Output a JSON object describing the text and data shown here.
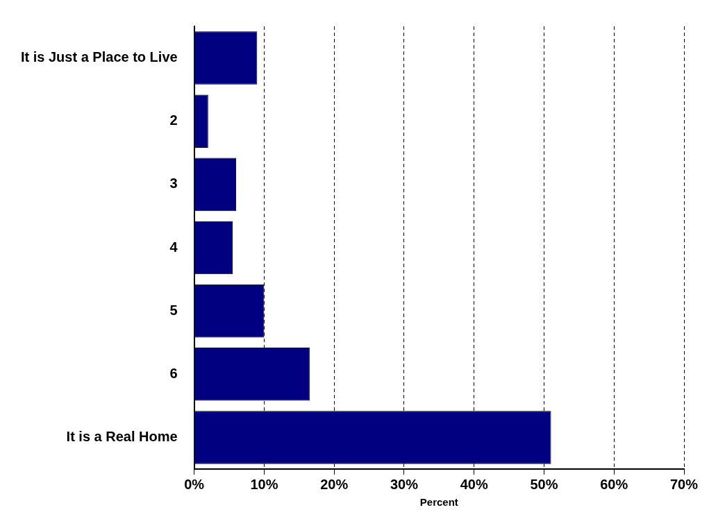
{
  "chart_data": {
    "type": "bar",
    "orientation": "horizontal",
    "xlabel": "Percent",
    "categories": [
      "It is Just a Place to Live",
      "2",
      "3",
      "4",
      "5",
      "6",
      "It is a Real Home"
    ],
    "values": [
      9,
      2,
      6,
      5.5,
      10,
      16.5,
      51
    ],
    "color": "#000080",
    "xlim": [
      0,
      70
    ],
    "xticks": [
      {
        "value": 0,
        "label": "0%"
      },
      {
        "value": 10,
        "label": "10%"
      },
      {
        "value": 20,
        "label": "20%"
      },
      {
        "value": 30,
        "label": "30%"
      },
      {
        "value": 40,
        "label": "40%"
      },
      {
        "value": 50,
        "label": "50%"
      },
      {
        "value": 60,
        "label": "60%"
      },
      {
        "value": 70,
        "label": "70%"
      }
    ],
    "grid": "x",
    "legend": false
  }
}
